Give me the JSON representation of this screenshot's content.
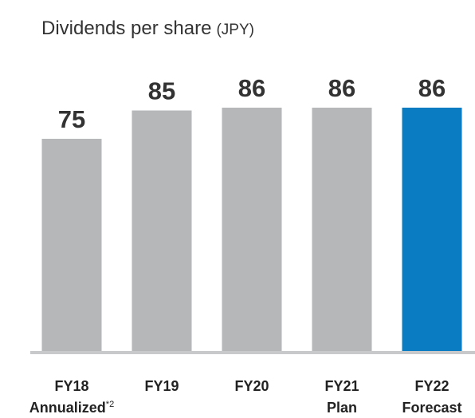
{
  "chart_data": {
    "type": "bar",
    "title": "Dividends per share",
    "unit": "(JPY)",
    "categories": [
      "FY18",
      "FY19",
      "FY20",
      "FY21",
      "FY22"
    ],
    "category_notes": [
      "Annualized",
      null,
      null,
      "Plan",
      "Forecast"
    ],
    "footnote_marks": [
      "*2",
      null,
      null,
      null,
      null
    ],
    "values": [
      75,
      85,
      86,
      86,
      86
    ],
    "colors": [
      "#b5b7b9",
      "#b5b7b9",
      "#b5b7b9",
      "#b5b7b9",
      "#0a7dc2"
    ]
  }
}
